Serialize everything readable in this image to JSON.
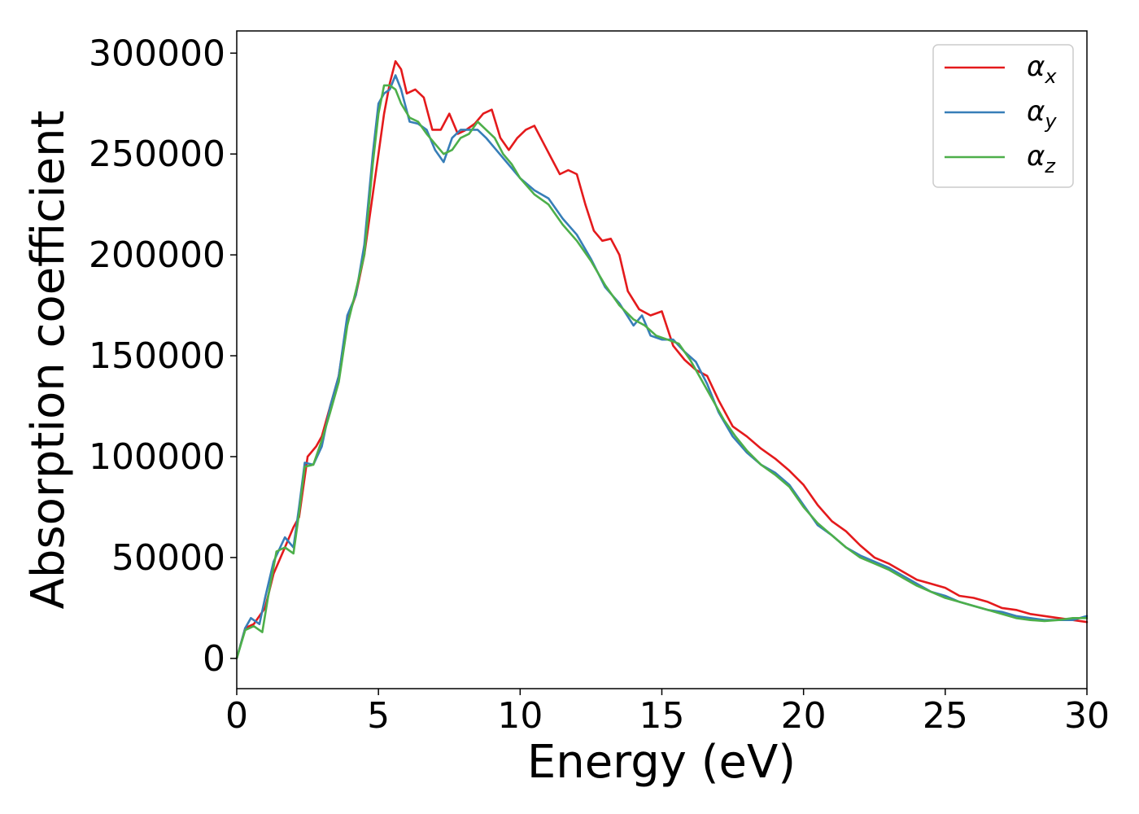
{
  "chart_data": {
    "type": "line",
    "title": "",
    "xlabel": "Energy (eV)",
    "ylabel": "Absorption coefficient",
    "xlim": [
      0,
      30
    ],
    "ylim": [
      -15000,
      311000
    ],
    "xticks": [
      0,
      5,
      10,
      15,
      20,
      25,
      30
    ],
    "yticks": [
      0,
      50000,
      100000,
      150000,
      200000,
      250000,
      300000
    ],
    "legend_position": "top-right",
    "series": [
      {
        "name": "α_x",
        "symbol": "α",
        "subscript": "x",
        "color": "#e41a1c",
        "x": [
          0,
          0.3,
          0.6,
          1.0,
          1.3,
          1.7,
          2.0,
          2.2,
          2.5,
          2.8,
          3.0,
          3.3,
          3.6,
          3.9,
          4.2,
          4.5,
          4.8,
          5.0,
          5.2,
          5.4,
          5.6,
          5.8,
          6.0,
          6.3,
          6.6,
          6.9,
          7.2,
          7.5,
          7.8,
          8.1,
          8.4,
          8.7,
          9.0,
          9.3,
          9.6,
          9.9,
          10.2,
          10.5,
          10.8,
          11.1,
          11.4,
          11.7,
          12.0,
          12.3,
          12.6,
          12.9,
          13.2,
          13.5,
          13.8,
          14.2,
          14.6,
          15.0,
          15.4,
          15.8,
          16.2,
          16.6,
          17.0,
          17.5,
          18.0,
          18.5,
          19.0,
          19.5,
          20.0,
          20.5,
          21.0,
          21.5,
          22.0,
          22.5,
          23.0,
          23.5,
          24.0,
          24.5,
          25.0,
          25.5,
          26.0,
          26.5,
          27.0,
          27.5,
          28.0,
          28.5,
          29.0,
          29.5,
          30.0
        ],
        "values": [
          0,
          15000,
          17000,
          25000,
          42000,
          55000,
          65000,
          70000,
          100000,
          105000,
          110000,
          125000,
          140000,
          168000,
          180000,
          200000,
          230000,
          250000,
          270000,
          285000,
          296000,
          292000,
          280000,
          282000,
          278000,
          262000,
          262000,
          270000,
          260000,
          262000,
          265000,
          270000,
          272000,
          258000,
          252000,
          258000,
          262000,
          264000,
          256000,
          248000,
          240000,
          242000,
          240000,
          225000,
          212000,
          207000,
          208000,
          200000,
          182000,
          173000,
          170000,
          172000,
          155000,
          148000,
          143000,
          140000,
          128000,
          115000,
          110000,
          104000,
          99000,
          93000,
          86000,
          76000,
          68000,
          63000,
          56000,
          50000,
          47000,
          43000,
          39000,
          37000,
          35000,
          31000,
          30000,
          28000,
          25000,
          24000,
          22000,
          21000,
          20000,
          19000,
          18000
        ]
      },
      {
        "name": "α_y",
        "symbol": "α",
        "subscript": "y",
        "color": "#377eb8",
        "x": [
          0,
          0.3,
          0.5,
          0.8,
          1.0,
          1.3,
          1.7,
          2.0,
          2.2,
          2.4,
          2.7,
          3.0,
          3.3,
          3.6,
          3.9,
          4.2,
          4.5,
          4.8,
          5.0,
          5.2,
          5.4,
          5.6,
          5.8,
          6.1,
          6.4,
          6.7,
          7.0,
          7.3,
          7.6,
          7.9,
          8.2,
          8.5,
          8.8,
          9.1,
          9.4,
          9.7,
          10.0,
          10.5,
          11.0,
          11.5,
          12.0,
          12.5,
          13.0,
          13.5,
          14.0,
          14.3,
          14.6,
          15.0,
          15.4,
          15.8,
          16.2,
          16.6,
          17.0,
          17.5,
          18.0,
          18.5,
          19.0,
          19.5,
          20.0,
          20.5,
          21.0,
          21.5,
          22.0,
          22.5,
          23.0,
          23.5,
          24.0,
          24.5,
          25.0,
          25.5,
          26.0,
          26.5,
          27.0,
          27.5,
          28.0,
          28.5,
          29.0,
          29.5,
          30.0
        ],
        "values": [
          0,
          15000,
          20000,
          17000,
          30000,
          48000,
          60000,
          55000,
          75000,
          97000,
          96000,
          105000,
          125000,
          140000,
          170000,
          180000,
          205000,
          250000,
          275000,
          280000,
          282000,
          289000,
          282000,
          266000,
          265000,
          262000,
          252000,
          246000,
          258000,
          262000,
          262000,
          262000,
          258000,
          253000,
          248000,
          243000,
          238000,
          232000,
          228000,
          218000,
          210000,
          198000,
          184000,
          176000,
          165000,
          170000,
          160000,
          158000,
          158000,
          152000,
          147000,
          136000,
          122000,
          110000,
          102000,
          96000,
          92000,
          86000,
          76000,
          66000,
          61000,
          55000,
          51000,
          48000,
          45000,
          41000,
          37000,
          33000,
          31000,
          28000,
          26000,
          24000,
          23000,
          21000,
          20000,
          19000,
          19000,
          19000,
          21000
        ]
      },
      {
        "name": "α_z",
        "symbol": "α",
        "subscript": "z",
        "color": "#4daf4a",
        "x": [
          0,
          0.3,
          0.6,
          0.9,
          1.1,
          1.4,
          1.7,
          2.0,
          2.2,
          2.4,
          2.7,
          3.0,
          3.3,
          3.6,
          3.9,
          4.2,
          4.5,
          4.8,
          5.0,
          5.2,
          5.4,
          5.6,
          5.8,
          6.1,
          6.4,
          6.7,
          7.0,
          7.3,
          7.6,
          7.9,
          8.2,
          8.5,
          8.8,
          9.1,
          9.4,
          9.7,
          10.0,
          10.5,
          11.0,
          11.5,
          12.0,
          12.5,
          13.0,
          13.5,
          14.0,
          14.4,
          14.8,
          15.2,
          15.6,
          16.0,
          16.4,
          16.8,
          17.2,
          17.6,
          18.0,
          18.5,
          19.0,
          19.5,
          20.0,
          20.5,
          21.0,
          21.5,
          22.0,
          22.5,
          23.0,
          23.5,
          24.0,
          24.5,
          25.0,
          25.5,
          26.0,
          26.5,
          27.0,
          27.5,
          28.0,
          28.5,
          29.0,
          29.5,
          30.0
        ],
        "values": [
          0,
          14000,
          16000,
          13000,
          30000,
          53000,
          55000,
          52000,
          72000,
          95000,
          96000,
          108000,
          122000,
          137000,
          165000,
          182000,
          200000,
          245000,
          270000,
          284000,
          284000,
          282000,
          275000,
          268000,
          266000,
          260000,
          255000,
          250000,
          252000,
          258000,
          260000,
          266000,
          262000,
          258000,
          250000,
          245000,
          238000,
          230000,
          225000,
          215000,
          207000,
          197000,
          185000,
          175000,
          168000,
          165000,
          160000,
          158000,
          156000,
          148000,
          138000,
          128000,
          118000,
          110000,
          103000,
          96000,
          91000,
          85000,
          75000,
          67000,
          61000,
          55000,
          50000,
          47000,
          44000,
          40000,
          36000,
          33000,
          30000,
          28000,
          26000,
          24000,
          22000,
          20000,
          19000,
          18500,
          19000,
          20000,
          20000
        ]
      }
    ]
  }
}
